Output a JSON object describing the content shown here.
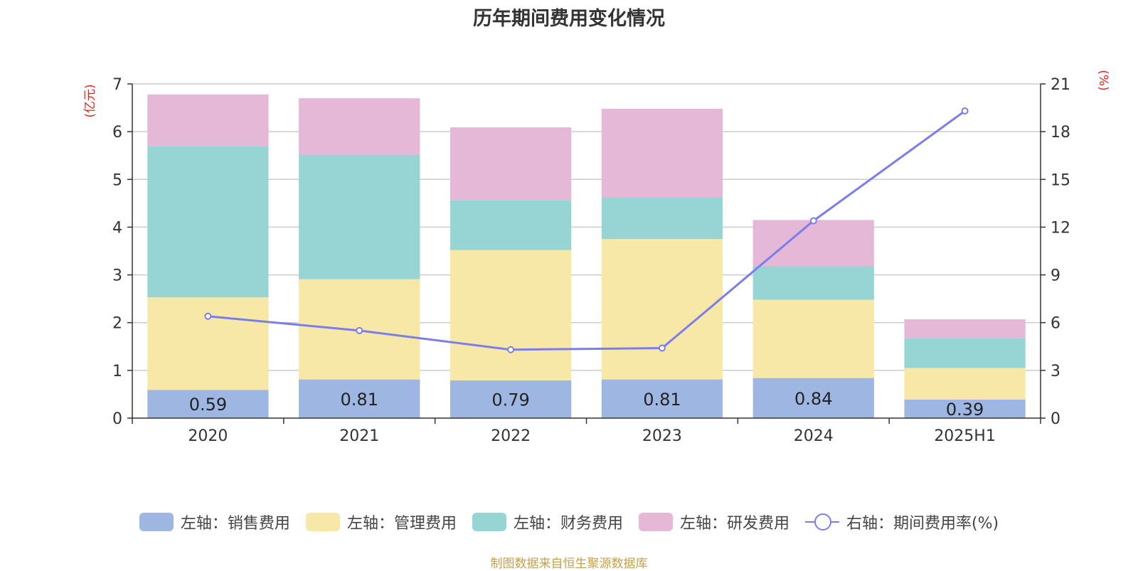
{
  "chart_data": {
    "type": "bar",
    "title": "历年期间费用变化情况",
    "categories": [
      "2020",
      "2021",
      "2022",
      "2023",
      "2024",
      "2025H1"
    ],
    "stacked": true,
    "series": [
      {
        "name": "左轴：销售费用",
        "axis": "left",
        "color": "#9db7e2",
        "values": [
          0.59,
          0.81,
          0.79,
          0.81,
          0.84,
          0.39
        ]
      },
      {
        "name": "左轴：管理费用",
        "axis": "left",
        "color": "#f7e8a8",
        "values": [
          1.94,
          2.1,
          2.73,
          2.94,
          1.64,
          0.66
        ]
      },
      {
        "name": "左轴：财务费用",
        "axis": "left",
        "color": "#97d4d4",
        "values": [
          3.16,
          2.6,
          1.04,
          0.88,
          0.7,
          0.62
        ]
      },
      {
        "name": "左轴：研发费用",
        "axis": "left",
        "color": "#e6b8d8",
        "values": [
          1.09,
          1.19,
          1.53,
          1.85,
          0.97,
          0.4
        ]
      },
      {
        "name": "右轴：期间费用率(%)",
        "axis": "right",
        "type": "line",
        "color": "#7b7eea",
        "values": [
          6.4,
          5.5,
          4.3,
          4.4,
          12.4,
          19.3
        ]
      }
    ],
    "data_labels": [
      "0.59",
      "0.81",
      "0.79",
      "0.81",
      "0.84",
      "0.39"
    ],
    "left_axis": {
      "label": "(亿元)",
      "ylim": [
        0,
        7
      ],
      "ticks": [
        "0",
        "1",
        "2",
        "3",
        "4",
        "5",
        "6",
        "7"
      ]
    },
    "right_axis": {
      "label": "(%)",
      "ylim": [
        0,
        21
      ],
      "ticks": [
        "0",
        "3",
        "6",
        "9",
        "12",
        "15",
        "18",
        "21"
      ]
    },
    "grid": true,
    "legend_position": "bottom"
  },
  "source_text": "制图数据来自恒生聚源数据库"
}
